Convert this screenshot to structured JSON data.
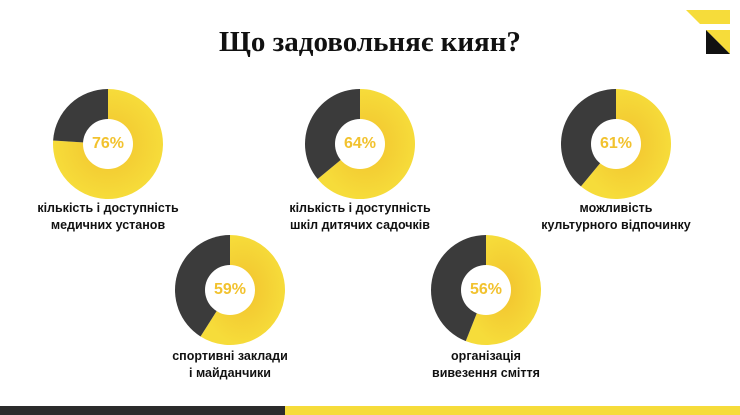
{
  "title": "Що задовольняє киян?",
  "colors": {
    "accent": "#f6dc3a",
    "accent_inner": "#f2c22e",
    "dark": "#3b3b3b",
    "pct_text": "#f2c22e",
    "inner_circle": "#ffffff",
    "bar_dark": "#2b2b2b",
    "bar_yellow": "#f6dc3a"
  },
  "chart_data": {
    "type": "pie",
    "items": [
      {
        "label_lines": [
          "кількість і доступність",
          "медичних установ"
        ],
        "value": 76,
        "pct_text": "76%"
      },
      {
        "label_lines": [
          "кількість і доступність",
          "шкіл дитячих садочків"
        ],
        "value": 64,
        "pct_text": "64%"
      },
      {
        "label_lines": [
          "можливість",
          "культурного відпочинку"
        ],
        "value": 61,
        "pct_text": "61%"
      },
      {
        "label_lines": [
          "спортивні заклади",
          "і майданчики"
        ],
        "value": 59,
        "pct_text": "59%"
      },
      {
        "label_lines": [
          "організація",
          "вивезення сміття"
        ],
        "value": 56,
        "pct_text": "56%"
      }
    ]
  }
}
